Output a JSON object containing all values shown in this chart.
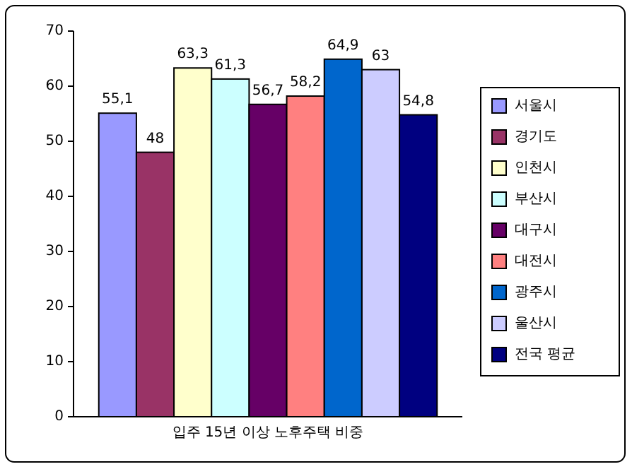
{
  "chart_data": {
    "type": "bar",
    "categories": [
      "입주 15년 이상 노후주택 비중"
    ],
    "series": [
      {
        "name": "서울시",
        "color": "#9999ff",
        "values": [
          55.1
        ],
        "value_labels": [
          "55,1"
        ]
      },
      {
        "name": "경기도",
        "color": "#993366",
        "values": [
          48
        ],
        "value_labels": [
          "48"
        ]
      },
      {
        "name": "인천시",
        "color": "#ffffcc",
        "values": [
          63.3
        ],
        "value_labels": [
          "63,3"
        ]
      },
      {
        "name": "부산시",
        "color": "#ccffff",
        "values": [
          61.3
        ],
        "value_labels": [
          "61,3"
        ]
      },
      {
        "name": "대구시",
        "color": "#660066",
        "values": [
          56.7
        ],
        "value_labels": [
          "56,7"
        ]
      },
      {
        "name": "대전시",
        "color": "#ff8080",
        "values": [
          58.2
        ],
        "value_labels": [
          "58,2"
        ]
      },
      {
        "name": "광주시",
        "color": "#0066cc",
        "values": [
          64.9
        ],
        "value_labels": [
          "64,9"
        ]
      },
      {
        "name": "울산시",
        "color": "#ccccff",
        "values": [
          63
        ],
        "value_labels": [
          "63"
        ]
      },
      {
        "name": "전국 평균",
        "color": "#000080",
        "values": [
          54.8
        ],
        "value_labels": [
          "54,8"
        ]
      }
    ],
    "ylim": [
      0,
      70
    ],
    "yticks": [
      0,
      10,
      20,
      30,
      40,
      50,
      60,
      70
    ],
    "legend": "right"
  }
}
